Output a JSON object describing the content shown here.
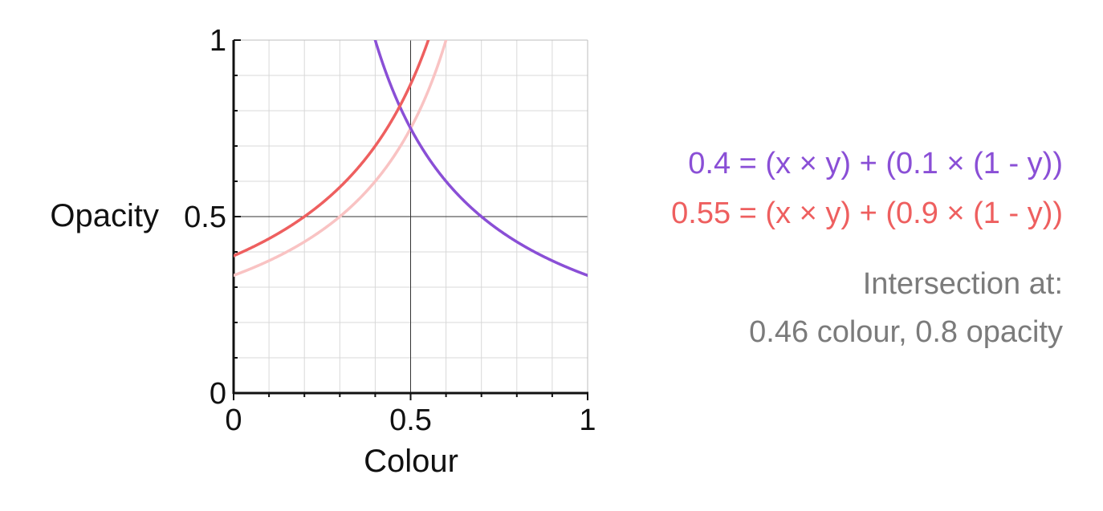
{
  "chart_data": {
    "type": "line",
    "xlabel": "Colour",
    "ylabel": "Opacity",
    "xlim": [
      0,
      1
    ],
    "ylim": [
      0,
      1
    ],
    "x_ticks": [
      "0",
      "0.5",
      "1"
    ],
    "y_ticks": [
      "0",
      "0.5",
      "1"
    ],
    "grid": true,
    "series": [
      {
        "equation": "0.4 = (x × y) + (0.1 × (1 - y))",
        "color": "#8a4fd6",
        "target": 0.4,
        "background": 0.1,
        "x": [
          0.4,
          0.45,
          0.46,
          0.5,
          0.55,
          0.6,
          0.7,
          0.8,
          0.9,
          1.0
        ],
        "y": [
          1.0,
          0.857,
          0.833,
          0.75,
          0.667,
          0.6,
          0.5,
          0.429,
          0.375,
          0.333
        ]
      },
      {
        "equation": "0.55 = (x × y) + (0.9 × (1 - y))",
        "color": "#ee5f5f",
        "target": 0.55,
        "background": 0.9,
        "x": [
          0.0,
          0.1,
          0.2,
          0.3,
          0.4,
          0.46,
          0.5,
          0.55
        ],
        "y": [
          0.389,
          0.4375,
          0.5,
          0.583,
          0.7,
          0.795,
          0.875,
          1.0
        ]
      },
      {
        "color": "#f9c3c3",
        "target": 0.6,
        "background": 0.9,
        "x": [
          0.0,
          0.1,
          0.2,
          0.3,
          0.4,
          0.5,
          0.6
        ],
        "y": [
          0.333,
          0.375,
          0.429,
          0.5,
          0.6,
          0.75,
          1.0
        ]
      }
    ],
    "intersection": {
      "x": 0.46,
      "y": 0.8
    }
  },
  "annotations": {
    "intersection_line1": "Intersection at:",
    "intersection_line2": "0.46 colour, 0.8 opacity",
    "note_color": "#7b7b7b"
  }
}
